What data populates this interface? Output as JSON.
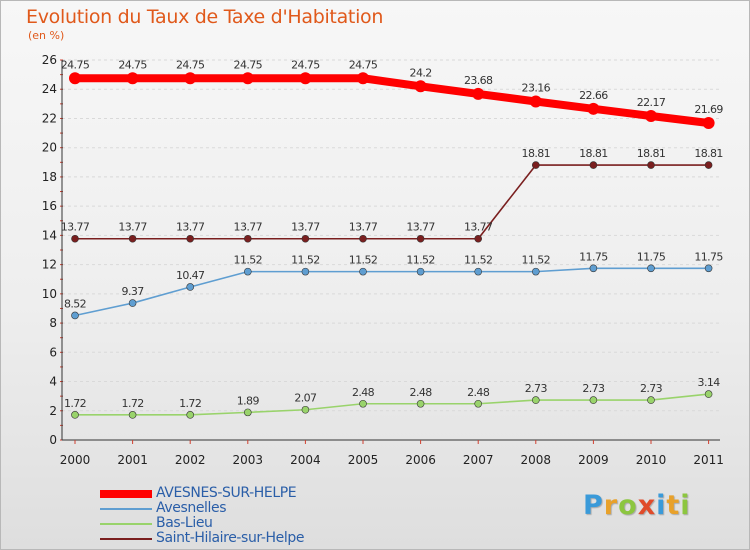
{
  "header": {
    "title": "Evolution du Taux de Taxe d'Habitation",
    "unit": "(en %)"
  },
  "logo": {
    "letters": [
      "P",
      "r",
      "o",
      "x",
      "i",
      "t",
      "i"
    ],
    "colors": [
      "#3a9ad9",
      "#e8a12a",
      "#8cc63f",
      "#e04b2a",
      "#3a9ad9",
      "#e8a12a",
      "#8cc63f"
    ]
  },
  "chart_data": {
    "type": "line",
    "title": "Evolution du Taux de Taxe d'Habitation",
    "ylabel": "(en %)",
    "xlabel": "",
    "x": [
      "2000",
      "2001",
      "2002",
      "2003",
      "2004",
      "2005",
      "2006",
      "2007",
      "2008",
      "2009",
      "2010",
      "2011"
    ],
    "ylim": [
      0,
      26
    ],
    "yticks": [
      "0",
      "2",
      "4",
      "6",
      "8",
      "10",
      "12",
      "14",
      "16",
      "18",
      "20",
      "22",
      "24",
      "26"
    ],
    "grid": "horizontal",
    "legend": "bottom-left",
    "series": [
      {
        "name": "AVESNES-SUR-HELPE",
        "color": "#ff0000",
        "values": [
          24.75,
          24.75,
          24.75,
          24.75,
          24.75,
          24.75,
          24.2,
          23.68,
          23.16,
          22.66,
          22.17,
          21.69
        ],
        "labels": [
          "24.75",
          "24.75",
          "24.75",
          "24.75",
          "24.75",
          "24.75",
          "24.2",
          "23.68",
          "23.16",
          "22.66",
          "22.17",
          "21.69"
        ],
        "emphasis": true
      },
      {
        "name": "Avesnelles",
        "color": "#5f9ed1",
        "values": [
          8.52,
          9.37,
          10.47,
          11.52,
          11.52,
          11.52,
          11.52,
          11.52,
          11.52,
          11.75,
          11.75,
          11.75
        ],
        "labels": [
          "8.52",
          "9.37",
          "10.47",
          "11.52",
          "11.52",
          "11.52",
          "11.52",
          "11.52",
          "11.52",
          "11.75",
          "11.75",
          "11.75"
        ]
      },
      {
        "name": "Bas-Lieu",
        "color": "#99d36b",
        "values": [
          1.72,
          1.72,
          1.72,
          1.89,
          2.07,
          2.48,
          2.48,
          2.48,
          2.73,
          2.73,
          2.73,
          3.14
        ],
        "labels": [
          "1.72",
          "1.72",
          "1.72",
          "1.89",
          "2.07",
          "2.48",
          "2.48",
          "2.48",
          "2.73",
          "2.73",
          "2.73",
          "3.14"
        ]
      },
      {
        "name": "Saint-Hilaire-sur-Helpe",
        "color": "#7a1f1f",
        "values": [
          13.77,
          13.77,
          13.77,
          13.77,
          13.77,
          13.77,
          13.77,
          13.77,
          18.81,
          18.81,
          18.81,
          18.81
        ],
        "labels": [
          "13.77",
          "13.77",
          "13.77",
          "13.77",
          "13.77",
          "13.77",
          "13.77",
          "13.77",
          "18.81",
          "18.81",
          "18.81",
          "18.81"
        ]
      }
    ]
  }
}
